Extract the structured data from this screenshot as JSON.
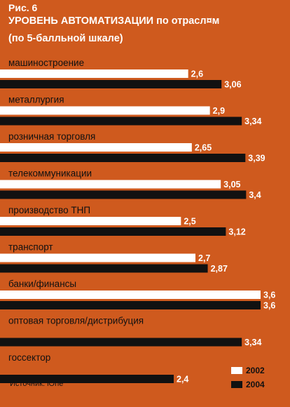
{
  "figure_label": "Рис. 6",
  "title": "УРОВЕНЬ АВТОМАТИЗАЦИИ по отрасл¤м",
  "subtitle": "(по 5-балльной шкале)",
  "source": "Источник: iOne",
  "colors": {
    "background": "#cf5a1e",
    "series_2002": "#ffffff",
    "series_2004": "#111111",
    "category_text": "#111111"
  },
  "chart_data": {
    "type": "bar",
    "orientation": "horizontal",
    "title": "УРОВЕНЬ АВТОМАТИЗАЦИИ по отрасл¤м",
    "subtitle": "(по 5-балльной шкале)",
    "categories": [
      "машиностроение",
      "металлургия",
      "розничная торговля",
      "телекоммуникации",
      "производство ТНП",
      "транспорт",
      "банки/финансы",
      "оптовая торговля/дистрибуция",
      "госсектор"
    ],
    "series": [
      {
        "name": "2002",
        "values": [
          2.6,
          2.9,
          2.65,
          3.05,
          2.5,
          2.7,
          3.6,
          null,
          null
        ],
        "labels": [
          "2,6",
          "2,9",
          "2,65",
          "3,05",
          "2,5",
          "2,7",
          "3,6",
          "",
          ""
        ]
      },
      {
        "name": "2004",
        "values": [
          3.06,
          3.34,
          3.39,
          3.4,
          3.12,
          2.87,
          3.6,
          3.34,
          2.4
        ],
        "labels": [
          "3,06",
          "3,34",
          "3,39",
          "3,4",
          "3,12",
          "2,87",
          "3,6",
          "3,34",
          "2,4"
        ]
      }
    ],
    "xlim": [
      0,
      3.6
    ],
    "legend_position": "bottom-right",
    "grid": false
  }
}
